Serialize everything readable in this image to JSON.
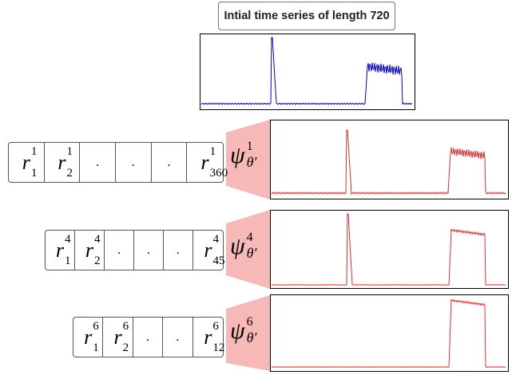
{
  "title": "Intial time series of length 720",
  "colors": {
    "original": "#0000cc",
    "reconstructed": "#e03030",
    "funnel": "#f7b8b8"
  },
  "psi_symbol": "ψ",
  "theta_symbol": "θ′",
  "levels": [
    {
      "level": "1",
      "cells": [
        {
          "sup": "1",
          "sub": "1"
        },
        {
          "sup": "1",
          "sub": "2"
        },
        ".",
        ".",
        ".",
        {
          "sup": "1",
          "sub": "360"
        }
      ]
    },
    {
      "level": "4",
      "cells": [
        {
          "sup": "4",
          "sub": "1"
        },
        {
          "sup": "4",
          "sub": "2"
        },
        ".",
        ".",
        ".",
        {
          "sup": "4",
          "sub": "45"
        }
      ]
    },
    {
      "level": "6",
      "cells": [
        {
          "sup": "6",
          "sub": "1"
        },
        {
          "sup": "6",
          "sub": "2"
        },
        ".",
        ".",
        {
          "sup": "6",
          "sub": "12"
        }
      ]
    }
  ]
}
